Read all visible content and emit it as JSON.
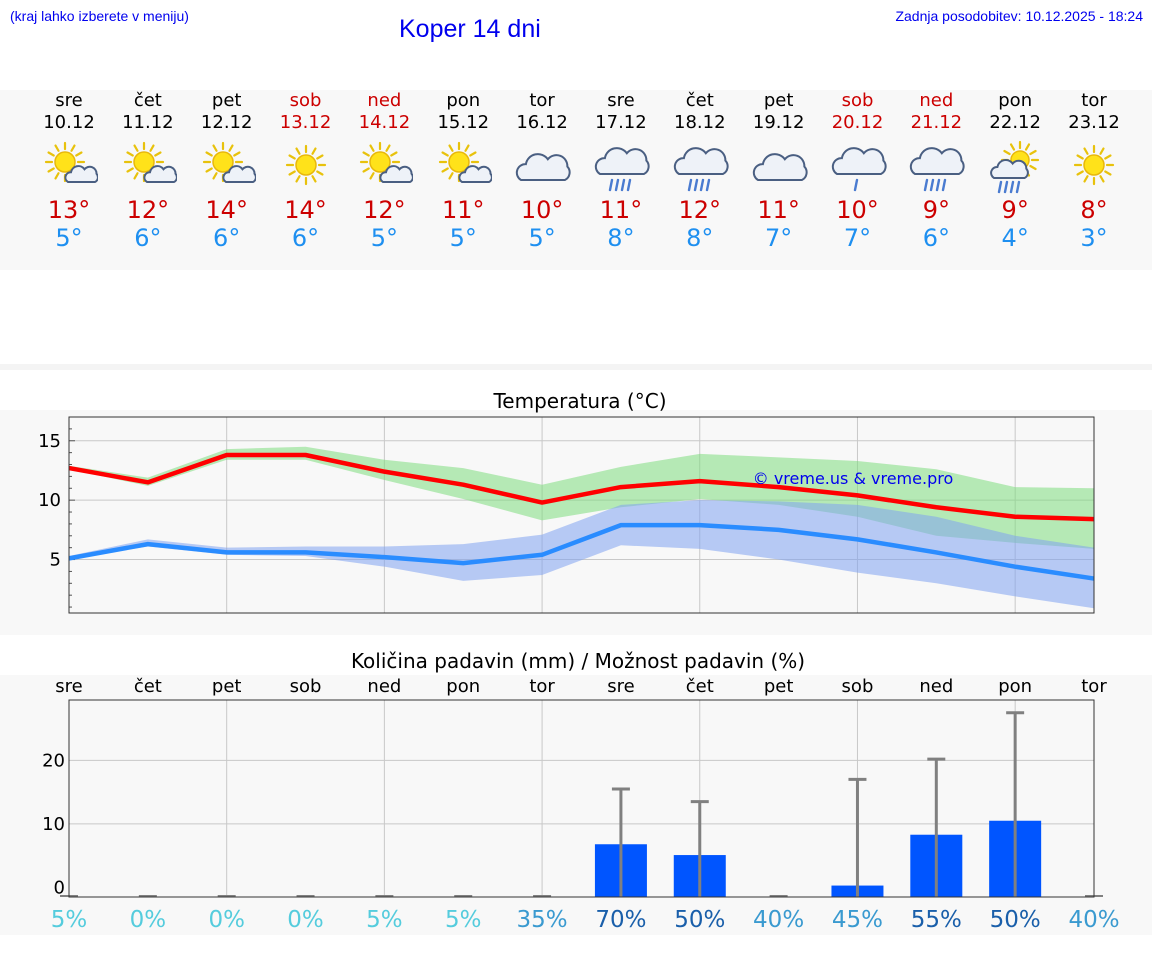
{
  "header": {
    "hint": "(kraj lahko izberete v meniju)",
    "title": "Koper 14 dni",
    "updated": "Zadnja posodobitev: 10.12.2025 - 18:24"
  },
  "days": [
    {
      "name": "sre",
      "date": "10.12",
      "icon": "sun-cloud-icon",
      "max": "13°",
      "min": "5°",
      "weekend": false
    },
    {
      "name": "čet",
      "date": "11.12",
      "icon": "sun-cloud-icon",
      "max": "12°",
      "min": "6°",
      "weekend": false
    },
    {
      "name": "pet",
      "date": "12.12",
      "icon": "sun-cloud-icon",
      "max": "14°",
      "min": "6°",
      "weekend": false
    },
    {
      "name": "sob",
      "date": "13.12",
      "icon": "sun-icon",
      "max": "14°",
      "min": "6°",
      "weekend": true
    },
    {
      "name": "ned",
      "date": "14.12",
      "icon": "sun-cloud-icon",
      "max": "12°",
      "min": "5°",
      "weekend": true
    },
    {
      "name": "pon",
      "date": "15.12",
      "icon": "sun-cloud-icon",
      "max": "11°",
      "min": "5°",
      "weekend": false
    },
    {
      "name": "tor",
      "date": "16.12",
      "icon": "cloud-icon",
      "max": "10°",
      "min": "5°",
      "weekend": false
    },
    {
      "name": "sre",
      "date": "17.12",
      "icon": "cloud-rain-icon",
      "max": "11°",
      "min": "8°",
      "weekend": false
    },
    {
      "name": "čet",
      "date": "18.12",
      "icon": "cloud-rain-icon",
      "max": "12°",
      "min": "8°",
      "weekend": false
    },
    {
      "name": "pet",
      "date": "19.12",
      "icon": "cloud-icon",
      "max": "11°",
      "min": "7°",
      "weekend": false
    },
    {
      "name": "sob",
      "date": "20.12",
      "icon": "cloud-light-rain-icon",
      "max": "10°",
      "min": "7°",
      "weekend": true
    },
    {
      "name": "ned",
      "date": "21.12",
      "icon": "cloud-rain-icon",
      "max": "9°",
      "min": "6°",
      "weekend": true
    },
    {
      "name": "pon",
      "date": "22.12",
      "icon": "sun-rain-icon",
      "max": "9°",
      "min": "4°",
      "weekend": false
    },
    {
      "name": "tor",
      "date": "23.12",
      "icon": "sun-icon",
      "max": "8°",
      "min": "3°",
      "weekend": false
    }
  ],
  "colors": {
    "max_line": "#ff0000",
    "max_band": "#7ddc7d",
    "min_line": "#2a8cff",
    "min_band": "#7fa3f0",
    "bar": "#0055ff",
    "whisker": "#808080",
    "weekday_text": "#000000",
    "weekend_text": "#cc0000",
    "max_text": "#cc0000",
    "min_text": "#1e8ff0"
  },
  "chart_data": [
    {
      "type": "line",
      "title": "Temperatura (°C)",
      "watermark": "© vreme.us & vreme.pro",
      "x": [
        0,
        1,
        2,
        3,
        4,
        5,
        6,
        7,
        8,
        9,
        10,
        11,
        12,
        13
      ],
      "ylim": [
        0.5,
        17
      ],
      "yticks": [
        5,
        10,
        15
      ],
      "series": [
        {
          "name": "max",
          "values": [
            12.7,
            11.5,
            13.8,
            13.8,
            12.4,
            11.3,
            9.8,
            11.1,
            11.6,
            11.1,
            10.4,
            9.4,
            8.6,
            8.4
          ],
          "band_low": [
            12.6,
            11.2,
            13.4,
            13.4,
            11.7,
            10.1,
            8.3,
            9.4,
            10.1,
            9.6,
            8.6,
            7.0,
            6.4,
            5.9
          ],
          "band_high": [
            12.9,
            11.9,
            14.3,
            14.5,
            13.4,
            12.7,
            11.3,
            12.8,
            13.9,
            13.6,
            13.3,
            12.6,
            11.1,
            11.0
          ]
        },
        {
          "name": "min",
          "values": [
            5.1,
            6.3,
            5.6,
            5.6,
            5.2,
            4.7,
            5.4,
            7.9,
            7.9,
            7.5,
            6.7,
            5.6,
            4.4,
            3.4
          ],
          "band_low": [
            5.0,
            6.1,
            5.4,
            5.3,
            4.4,
            3.2,
            3.7,
            6.2,
            5.9,
            5.0,
            3.9,
            3.0,
            1.9,
            0.9
          ],
          "band_high": [
            5.3,
            6.7,
            6.0,
            6.1,
            6.1,
            6.3,
            7.1,
            9.6,
            10.0,
            9.9,
            9.6,
            8.6,
            7.0,
            6.0
          ]
        }
      ]
    },
    {
      "type": "bar",
      "title": "Količina padavin (mm) / Možnost padavin (%)",
      "categories": [
        "sre",
        "čet",
        "pet",
        "sob",
        "ned",
        "pon",
        "tor",
        "sre",
        "čet",
        "pet",
        "sob",
        "ned",
        "pon",
        "tor"
      ],
      "values": [
        0,
        0,
        0,
        0,
        0,
        0,
        0,
        6.8,
        5.1,
        0,
        0.3,
        8.3,
        10.5,
        0
      ],
      "upper": [
        0,
        0,
        0,
        0,
        0,
        0,
        0,
        15.5,
        13.5,
        0,
        17,
        20.2,
        27.5,
        0
      ],
      "probability": [
        "5%",
        "0%",
        "0%",
        "0%",
        "5%",
        "5%",
        "35%",
        "70%",
        "50%",
        "40%",
        "45%",
        "55%",
        "50%",
        "40%"
      ],
      "prob_colors": [
        "#55ccdd",
        "#55ccdd",
        "#55ccdd",
        "#55ccdd",
        "#55ccdd",
        "#55ccdd",
        "#3a9ad0",
        "#1a5faa",
        "#1a5faa",
        "#3a9ad0",
        "#3a9ad0",
        "#1a5faa",
        "#1a5faa",
        "#3a9ad0"
      ],
      "ylim": [
        -1.5,
        29.5
      ],
      "yticks": [
        0,
        10,
        20
      ]
    }
  ]
}
